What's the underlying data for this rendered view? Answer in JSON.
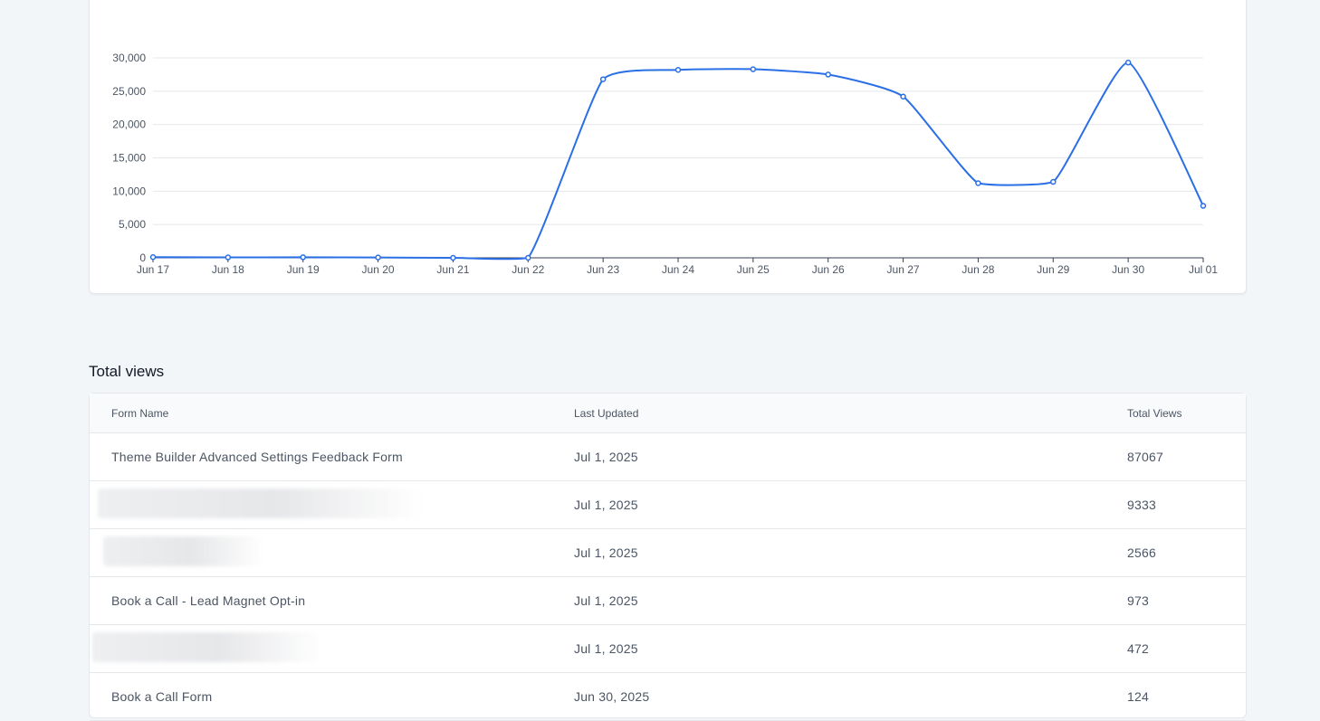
{
  "chart_data": {
    "type": "line",
    "categories": [
      "Jun 17",
      "Jun 18",
      "Jun 19",
      "Jun 20",
      "Jun 21",
      "Jun 22",
      "Jun 23",
      "Jun 24",
      "Jun 25",
      "Jun 26",
      "Jun 27",
      "Jun 28",
      "Jun 29",
      "Jun 30",
      "Jul 01"
    ],
    "values": [
      100,
      60,
      80,
      50,
      0,
      0,
      26800,
      28200,
      28300,
      27500,
      24200,
      11200,
      11400,
      29300,
      7800
    ],
    "y_ticks": [
      "0",
      "5,000",
      "10,000",
      "15,000",
      "20,000",
      "25,000",
      "30,000"
    ],
    "ylim": [
      0,
      30000
    ],
    "grid": true,
    "line_color": "#2b6fe6",
    "grid_color": "#e5e7eb"
  },
  "section_title": "Total views",
  "table": {
    "columns": [
      "Form Name",
      "Last Updated",
      "Total Views"
    ],
    "rows": [
      {
        "name": "Theme Builder Advanced Settings Feedback Form",
        "updated": "Jul 1, 2025",
        "views": "87067",
        "redacted": false
      },
      {
        "name": "",
        "updated": "Jul 1, 2025",
        "views": "9333",
        "redacted": true
      },
      {
        "name": "",
        "updated": "Jul 1, 2025",
        "views": "2566",
        "redacted": true
      },
      {
        "name": "Book a Call - Lead Magnet Opt-in",
        "updated": "Jul 1, 2025",
        "views": "973",
        "redacted": false
      },
      {
        "name": "",
        "updated": "Jul 1, 2025",
        "views": "472",
        "redacted": true
      },
      {
        "name": "Book a Call Form",
        "updated": "Jun 30, 2025",
        "views": "124",
        "redacted": false
      }
    ]
  }
}
